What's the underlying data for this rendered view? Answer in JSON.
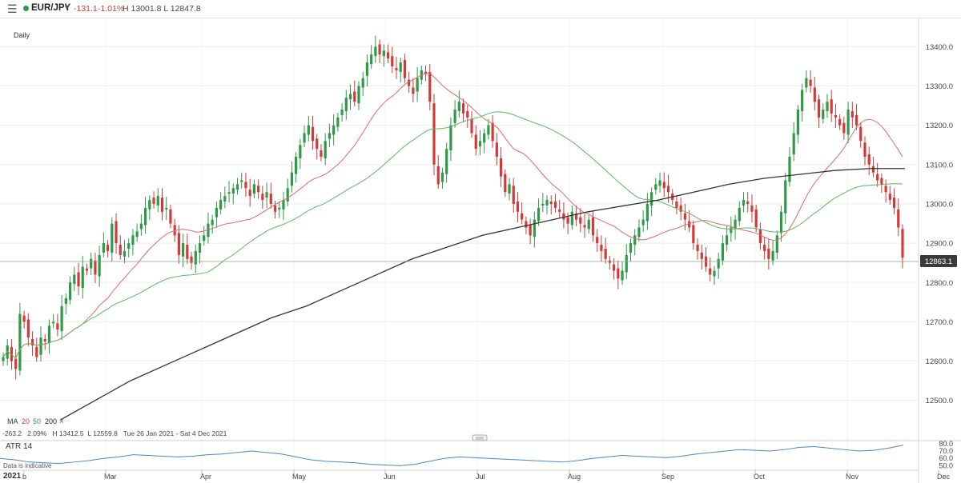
{
  "header": {
    "menu_icon": "hamburger-icon",
    "instrument": "EUR/JPY",
    "change": "-131.1",
    "change_pct": "-1.01%",
    "hl": "H 13001.8  L 12847.8",
    "colors": {
      "up": "#2e9a47",
      "down": "#d23a3a"
    }
  },
  "chart_panel": {
    "timeframe": "Daily",
    "ma_legend": {
      "label": "MA",
      "p1": "20",
      "p2": "50",
      "p3": "200",
      "remove": "×"
    },
    "info_line": "-263.2   2.09%   H 13412.5  L 12559.8   Tue 26 Jan 2021 - Sat 4 Dec 2021",
    "last_price": "12863.1"
  },
  "atr_panel": {
    "label": "ATR  14",
    "ticks": [
      "80.0",
      "70.0",
      "60.0",
      "50.0"
    ],
    "disclaimer": "Data is indicative"
  },
  "chart_data": {
    "type": "candlestick",
    "title": "EUR/JPY",
    "interval": "Daily",
    "y_ticks": [
      12500,
      12600,
      12700,
      12800,
      12900,
      13000,
      13100,
      13200,
      13300,
      13400
    ],
    "y_tick_labels": [
      "12500.0",
      "12600.0",
      "12700.0",
      "12800.0",
      "12900.0",
      "13000.0",
      "13100.0",
      "13200.0",
      "13300.0",
      "13400.0"
    ],
    "ylim": [
      12420,
      13470
    ],
    "x_labels": [
      "b",
      "Mar",
      "Apr",
      "May",
      "Jun",
      "Jul",
      "Aug",
      "Sep",
      "Oct",
      "Nov",
      "Dec"
    ],
    "x_label_year": "2021",
    "closes": [
      12610,
      12640,
      12600,
      12580,
      12720,
      12700,
      12660,
      12640,
      12610,
      12660,
      12650,
      12690,
      12700,
      12680,
      12740,
      12760,
      12800,
      12820,
      12790,
      12840,
      12830,
      12860,
      12820,
      12870,
      12900,
      12880,
      12950,
      12900,
      12870,
      12880,
      12900,
      12920,
      12930,
      12950,
      12990,
      13010,
      13000,
      13020,
      12980,
      12990,
      12950,
      12920,
      12870,
      12900,
      12860,
      12850,
      12880,
      12900,
      12920,
      12950,
      12960,
      12990,
      13010,
      13020,
      13030,
      13040,
      13050,
      13060,
      13040,
      13020,
      13050,
      13030,
      13010,
      13030,
      13000,
      12980,
      12990,
      13010,
      13040,
      13080,
      13120,
      13150,
      13180,
      13200,
      13160,
      13140,
      13120,
      13160,
      13180,
      13200,
      13220,
      13240,
      13270,
      13280,
      13260,
      13300,
      13320,
      13360,
      13380,
      13400,
      13380,
      13390,
      13370,
      13350,
      13340,
      13360,
      13320,
      13300,
      13280,
      13320,
      13340,
      13330,
      13260,
      13100,
      13050,
      13080,
      13140,
      13200,
      13240,
      13260,
      13230,
      13220,
      13180,
      13140,
      13160,
      13180,
      13200,
      13160,
      13120,
      13070,
      13030,
      13050,
      13000,
      12980,
      12960,
      12940,
      12920,
      12960,
      12990,
      13000,
      13010,
      13000,
      12990,
      12980,
      12960,
      12950,
      12980,
      12960,
      12950,
      12940,
      12960,
      12920,
      12900,
      12880,
      12860,
      12850,
      12830,
      12810,
      12830,
      12870,
      12900,
      12920,
      12940,
      12960,
      13000,
      13030,
      13050,
      13060,
      13040,
      13030,
      13010,
      12990,
      12980,
      12960,
      12940,
      12900,
      12880,
      12860,
      12840,
      12820,
      12830,
      12860,
      12900,
      12920,
      12940,
      12960,
      12990,
      13010,
      13000,
      12980,
      12940,
      12900,
      12880,
      12860,
      12880,
      12920,
      12980,
      13060,
      13120,
      13180,
      13240,
      13290,
      13320,
      13300,
      13260,
      13220,
      13240,
      13260,
      13230,
      13220,
      13200,
      13180,
      13240,
      13220,
      13200,
      13160,
      13120,
      13100,
      13080,
      13060,
      13050,
      13030,
      13010,
      12990,
      12940,
      12863
    ],
    "moving_averages": [
      {
        "name": "20",
        "color": "#e06a6a",
        "period": 20
      },
      {
        "name": "50",
        "color": "#5cb85c",
        "period": 50
      },
      {
        "name": "200",
        "color": "#333333",
        "period": 200
      }
    ],
    "ma200_points": [
      12450,
      12500,
      12550,
      12590,
      12630,
      12670,
      12710,
      12740,
      12780,
      12820,
      12860,
      12890,
      12920,
      12940,
      12960,
      12980,
      12995,
      13010,
      13030,
      13050,
      13065,
      13075,
      13085,
      13090,
      13090
    ],
    "atr_values": [
      60,
      58,
      55,
      54,
      53,
      55,
      57,
      60,
      62,
      65,
      64,
      63,
      62,
      63,
      65,
      66,
      68,
      70,
      68,
      66,
      62,
      58,
      56,
      55,
      54,
      52,
      51,
      50,
      52,
      56,
      60,
      62,
      61,
      60,
      59,
      58,
      57,
      56,
      55,
      57,
      60,
      62,
      64,
      63,
      62,
      61,
      63,
      66,
      68,
      70,
      72,
      71,
      70,
      72,
      75,
      76,
      74,
      72,
      70,
      71,
      74,
      78
    ]
  }
}
